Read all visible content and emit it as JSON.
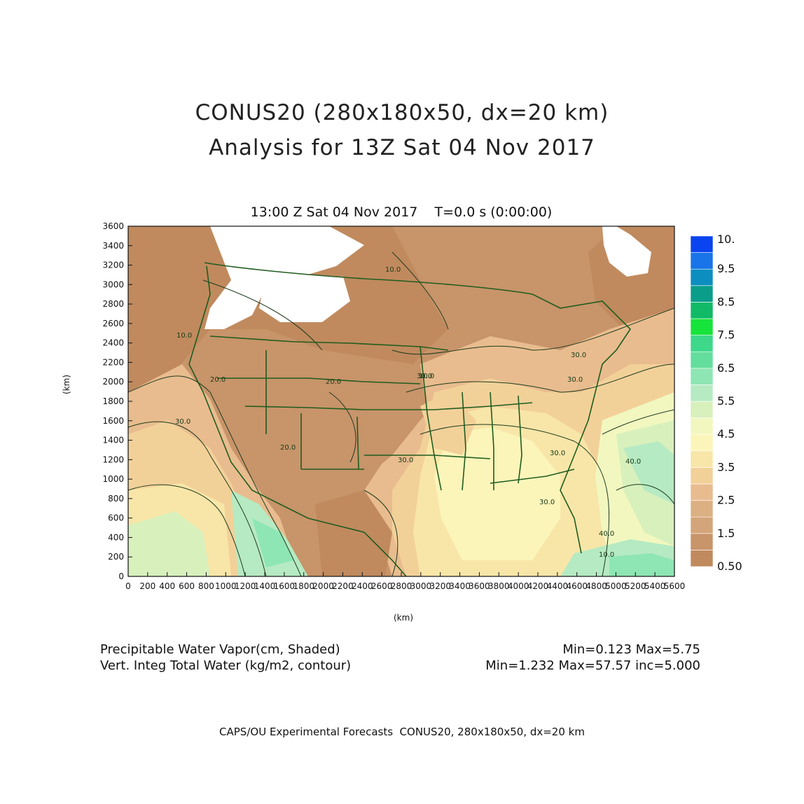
{
  "title_line1": "CONUS20 (280x180x50, dx=20 km)",
  "title_line2": "Analysis for 13Z Sat 04 Nov 2017",
  "subtitle": "13:00 Z Sat 04 Nov 2017    T=0.0 s (0:00:00)",
  "axes": {
    "x_label": "(km)",
    "y_label": "(km)",
    "x_ticks": [
      "0",
      "200",
      "400",
      "600",
      "800",
      "1000",
      "1200",
      "1400",
      "1600",
      "1800",
      "2000",
      "2200",
      "2400",
      "2600",
      "2800",
      "3000",
      "3200",
      "3400",
      "3600",
      "3800",
      "4000",
      "4200",
      "4400",
      "4600",
      "4800",
      "5000",
      "5200",
      "5400",
      "5600"
    ],
    "y_ticks": [
      "0",
      "200",
      "400",
      "600",
      "800",
      "1000",
      "1200",
      "1400",
      "1600",
      "1800",
      "2000",
      "2200",
      "2400",
      "2600",
      "2800",
      "3000",
      "3200",
      "3400",
      "3600"
    ]
  },
  "colorbar": {
    "labels": [
      "10.",
      "9.5",
      "8.5",
      "7.5",
      "6.5",
      "5.5",
      "4.5",
      "3.5",
      "2.5",
      "1.5",
      "0.50"
    ],
    "colors": [
      "#c08a5e",
      "#c8946a",
      "#d4a57a",
      "#dcb083",
      "#e8bc8e",
      "#f2d199",
      "#f8e6a8",
      "#fcf5ba",
      "#f2f7c0",
      "#d8f0bc",
      "#b6eac2",
      "#8ee6b4",
      "#64de9c",
      "#3ed88a",
      "#16e43a",
      "#10ba66",
      "#0a9e8a",
      "#0c8ec0",
      "#1874e8",
      "#0a44f0"
    ]
  },
  "info": {
    "shaded_field": "Precipitable Water Vapor(cm, Shaded)",
    "shaded_range": "Min=0.123 Max=5.75",
    "contour_field": "Vert. Integ Total Water (kg/m2, contour)",
    "contour_range": "Min=1.232 Max=57.57 inc=5.000"
  },
  "contour_labels": [
    "10.0",
    "10.0",
    "20.0",
    "20.0",
    "20.0",
    "30.0",
    "30.0",
    "30.0",
    "30.0",
    "30.0",
    "30.0",
    "40.0",
    "30.0",
    "40.0",
    "10.0",
    "10.0"
  ],
  "footer": "CAPS/OU Experimental Forecasts  CONUS20, 280x180x50, dx=20 km"
}
